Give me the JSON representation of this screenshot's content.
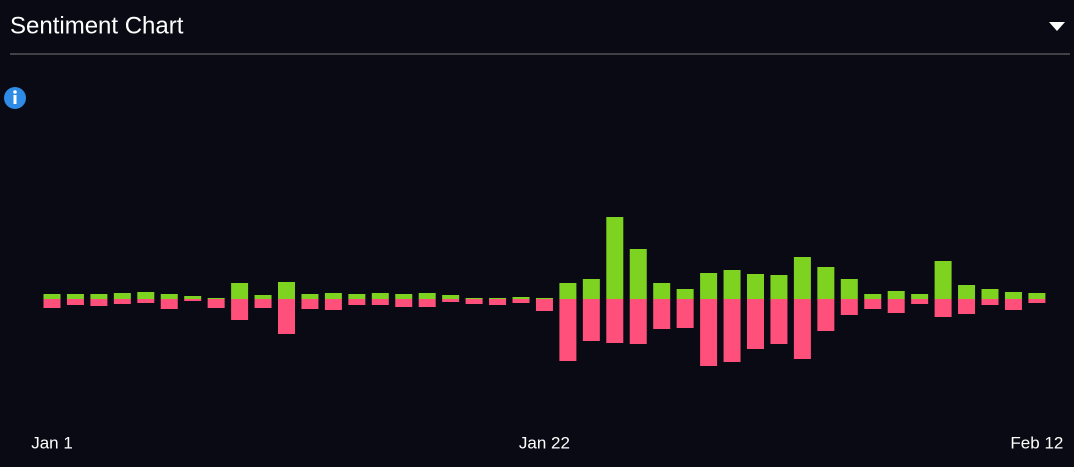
{
  "chart_data": {
    "type": "diverging-bar",
    "title": "Sentiment Chart",
    "categories": [
      "Jan 1",
      null,
      null,
      null,
      null,
      null,
      null,
      null,
      null,
      null,
      null,
      null,
      null,
      null,
      null,
      null,
      null,
      null,
      null,
      null,
      null,
      "Jan 22",
      null,
      null,
      null,
      null,
      null,
      null,
      null,
      null,
      null,
      null,
      null,
      null,
      null,
      null,
      null,
      null,
      null,
      null,
      null,
      null,
      "Feb 12"
    ],
    "series": [
      {
        "color": "#7ed321",
        "values": [
          5,
          5,
          5,
          6,
          7,
          5,
          3,
          1,
          16,
          4,
          17,
          5,
          6,
          5,
          6,
          5,
          6,
          4,
          1,
          1,
          2,
          1,
          16,
          20,
          82,
          50,
          16,
          10,
          26,
          29,
          25,
          24,
          42,
          32,
          20,
          5,
          8,
          5,
          38,
          14,
          10,
          7,
          6
        ]
      },
      {
        "color": "#ff4f7b",
        "values": [
          -9,
          -6,
          -7,
          -5,
          -4,
          -10,
          -2,
          -9,
          -21,
          -9,
          -35,
          -10,
          -11,
          -6,
          -6,
          -8,
          -8,
          -3,
          -5,
          -6,
          -4,
          -12,
          -62,
          -42,
          -44,
          -45,
          -30,
          -29,
          -67,
          -63,
          -50,
          -45,
          -60,
          -32,
          -16,
          -10,
          -14,
          -5,
          -18,
          -15,
          -6,
          -11,
          -4
        ]
      }
    ],
    "ylim": [
      -100,
      180
    ]
  }
}
